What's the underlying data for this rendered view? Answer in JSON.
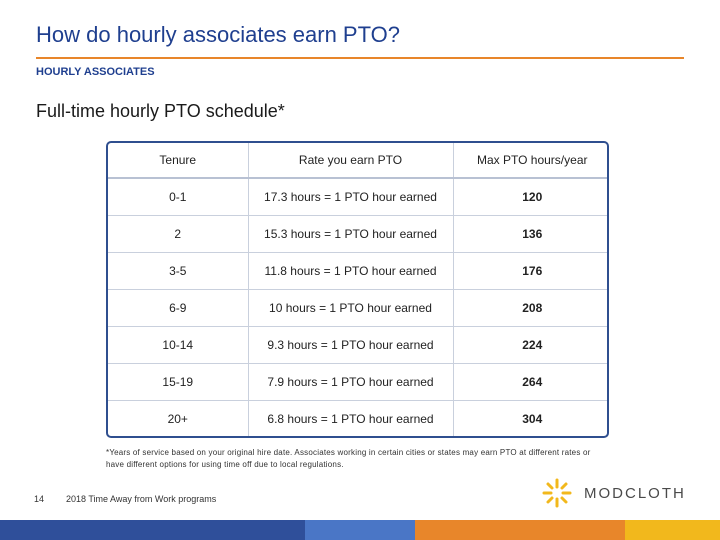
{
  "slide": {
    "title": "How do hourly associates earn PTO?",
    "section_label": "HOURLY ASSOCIATES",
    "subtitle": "Full-time hourly PTO schedule*"
  },
  "table": {
    "headers": [
      "Tenure",
      "Rate you earn PTO",
      "Max PTO hours/year"
    ],
    "rows": [
      [
        "0-1",
        "17.3 hours = 1 PTO hour earned",
        "120"
      ],
      [
        "2",
        "15.3 hours = 1 PTO hour earned",
        "136"
      ],
      [
        "3-5",
        "11.8 hours = 1 PTO hour earned",
        "176"
      ],
      [
        "6-9",
        "10 hours = 1 PTO hour earned",
        "208"
      ],
      [
        "10-14",
        "9.3 hours = 1 PTO hour earned",
        "224"
      ],
      [
        "15-19",
        "7.9 hours = 1 PTO hour earned",
        "264"
      ],
      [
        "20+",
        "6.8 hours = 1 PTO hour earned",
        "304"
      ]
    ]
  },
  "footnote": "*Years of service based on your original hire date. Associates working in certain cities or states may earn PTO at different rates or have different options for using time off due to local regulations.",
  "footer": {
    "page_number": "14",
    "text": "2018 Time Away from Work programs",
    "logo_text": "MODCLOTH"
  },
  "colors": {
    "title": "#1f3f8f",
    "accent_rule": "#e8862a",
    "table_border": "#2f4f8f",
    "logo_mark": "#f2b81c",
    "bottom_bar": [
      "#2f4f9a",
      "#2f4f9a",
      "#4a76c6",
      "#e8862a",
      "#f2b81c"
    ]
  }
}
